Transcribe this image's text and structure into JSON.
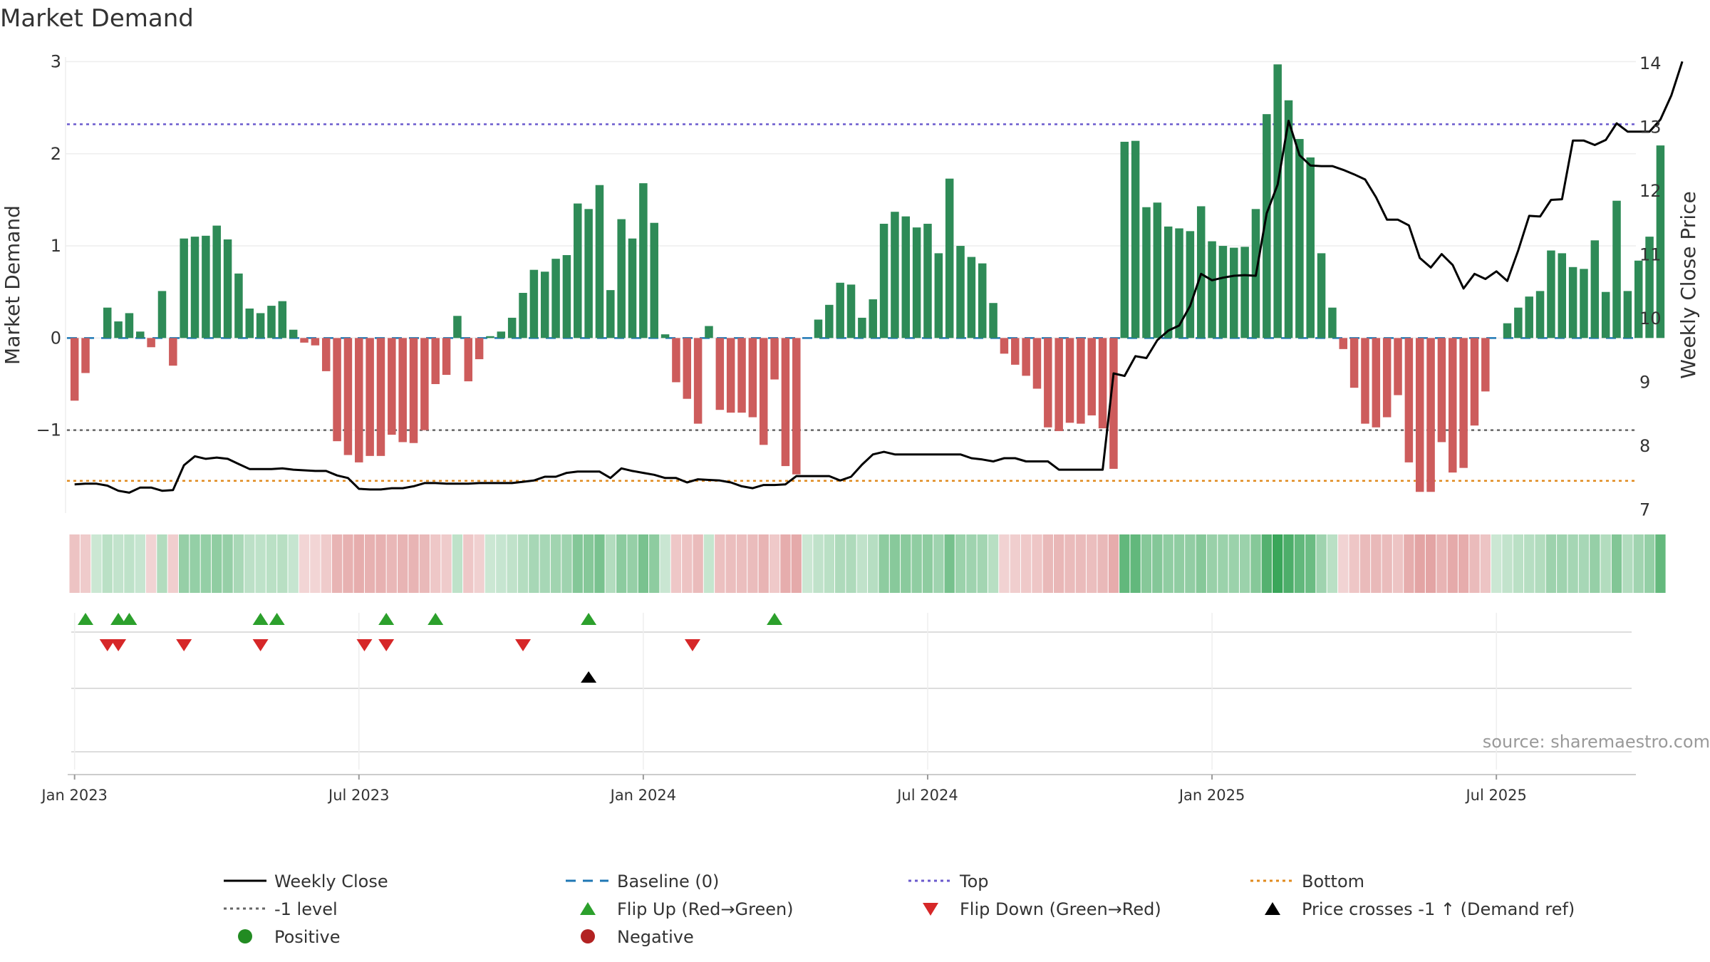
{
  "chart_data": {
    "type": "bar",
    "title": "Market Demand",
    "ylabel_left": "Market Demand",
    "ylabel_right": "Weekly Close Price",
    "left_ylim": [
      -1.9,
      3.05
    ],
    "right_ylim": [
      6.95,
      14.1
    ],
    "left_ticks": [
      3,
      2,
      1,
      0,
      -1
    ],
    "left_tick_labels": [
      "3",
      "2",
      "1",
      "0",
      "−1"
    ],
    "right_ticks": [
      14,
      13,
      12,
      11,
      10,
      9,
      8,
      7
    ],
    "right_tick_labels": [
      "14",
      "13",
      "12",
      "11",
      "10",
      "9",
      "8",
      "7"
    ],
    "reference_lines": {
      "top": 2.32,
      "bottom": -1.55,
      "minus_one": -1,
      "baseline": 0
    },
    "x_tick_labels": [
      "Jan 2023",
      "Jul 2023",
      "Jan 2024",
      "Jul 2024",
      "Jan 2025",
      "Jul 2025"
    ],
    "x_tick_weeks": [
      0.5,
      26.5,
      52.5,
      78.5,
      104.5,
      130.5
    ],
    "demand": [
      -0.68,
      -0.38,
      0.0,
      0.33,
      0.18,
      0.27,
      0.07,
      -0.1,
      0.51,
      -0.3,
      1.08,
      1.1,
      1.11,
      1.22,
      1.07,
      0.7,
      0.32,
      0.27,
      0.35,
      0.4,
      0.09,
      -0.05,
      -0.08,
      -0.36,
      -1.12,
      -1.27,
      -1.35,
      -1.28,
      -1.28,
      -1.05,
      -1.13,
      -1.14,
      -1.0,
      -0.5,
      -0.4,
      0.24,
      -0.47,
      -0.23,
      0.02,
      0.07,
      0.22,
      0.49,
      0.74,
      0.72,
      0.86,
      0.9,
      1.46,
      1.4,
      1.66,
      0.52,
      1.29,
      1.08,
      1.68,
      1.25,
      0.04,
      -0.48,
      -0.66,
      -0.93,
      0.13,
      -0.78,
      -0.81,
      -0.81,
      -0.86,
      -1.16,
      -0.45,
      -1.39,
      -1.48,
      0.0,
      0.2,
      0.36,
      0.6,
      0.58,
      0.22,
      0.42,
      1.24,
      1.37,
      1.32,
      1.2,
      1.24,
      0.92,
      1.73,
      1.0,
      0.88,
      0.81,
      0.38,
      -0.17,
      -0.29,
      -0.41,
      -0.55,
      -0.97,
      -1.01,
      -0.92,
      -0.93,
      -0.84,
      -0.98,
      -1.42,
      2.13,
      2.14,
      1.42,
      1.47,
      1.21,
      1.19,
      1.16,
      1.43,
      1.05,
      1.0,
      0.98,
      0.99,
      1.4,
      2.43,
      2.97,
      2.58,
      2.16,
      1.96,
      0.92,
      0.33,
      -0.12,
      -0.54,
      -0.93,
      -0.97,
      -0.86,
      -0.62,
      -1.35,
      -1.67,
      -1.67,
      -1.13,
      -1.46,
      -1.41,
      -0.95,
      -0.58,
      0.0,
      0.16,
      0.33,
      0.45,
      0.51,
      0.95,
      0.92,
      0.77,
      0.75,
      1.06,
      0.5,
      1.49,
      0.51,
      0.84,
      1.1,
      2.09
    ],
    "close": [
      7.4,
      7.41,
      7.41,
      7.38,
      7.3,
      7.27,
      7.35,
      7.35,
      7.3,
      7.31,
      7.7,
      7.84,
      7.8,
      7.82,
      7.8,
      7.72,
      7.64,
      7.64,
      7.64,
      7.65,
      7.63,
      7.62,
      7.61,
      7.61,
      7.54,
      7.5,
      7.33,
      7.32,
      7.32,
      7.34,
      7.34,
      7.37,
      7.42,
      7.42,
      7.41,
      7.41,
      7.41,
      7.42,
      7.42,
      7.42,
      7.42,
      7.44,
      7.46,
      7.52,
      7.52,
      7.58,
      7.6,
      7.6,
      7.6,
      7.5,
      7.65,
      7.61,
      7.58,
      7.55,
      7.5,
      7.5,
      7.43,
      7.48,
      7.47,
      7.46,
      7.43,
      7.37,
      7.34,
      7.39,
      7.39,
      7.4,
      7.53,
      7.53,
      7.53,
      7.53,
      7.46,
      7.52,
      7.71,
      7.87,
      7.91,
      7.87,
      7.87,
      7.87,
      7.87,
      7.87,
      7.87,
      7.87,
      7.81,
      7.79,
      7.76,
      7.81,
      7.81,
      7.76,
      7.76,
      7.76,
      7.63,
      7.63,
      7.63,
      7.63,
      7.63,
      9.14,
      9.1,
      9.41,
      9.38,
      9.66,
      9.81,
      9.89,
      10.2,
      10.7,
      10.6,
      10.64,
      10.67,
      10.68,
      10.67,
      11.65,
      12.1,
      13.1,
      12.56,
      12.4,
      12.39,
      12.39,
      12.33,
      12.26,
      12.18,
      11.9,
      11.55,
      11.55,
      11.46,
      10.95,
      10.8,
      11.01,
      10.84,
      10.47,
      10.7,
      10.62,
      10.74,
      10.59,
      11.07,
      11.61,
      11.6,
      11.86,
      11.87,
      12.79,
      12.79,
      12.72,
      12.8,
      13.06,
      12.93,
      12.93,
      12.93,
      13.12,
      13.5,
      14.03
    ],
    "flip_up_weeks": [
      1.5,
      4.5,
      5.5,
      17.5,
      19,
      29,
      33.5,
      47.5,
      64.5
    ],
    "flip_down_weeks": [
      3.5,
      4.5,
      10.5,
      17.5,
      27,
      29,
      41.5,
      57
    ],
    "price_cross_weeks": [
      47.5
    ],
    "legend": {
      "weekly_close": "Weekly Close",
      "baseline": "Baseline (0)",
      "top": "Top",
      "bottom": "Bottom",
      "minus_one": "-1 level",
      "flip_up": "Flip Up (Red→Green)",
      "flip_down": "Flip Down (Green→Red)",
      "price_cross": "Price crosses -1 ↑ (Demand ref)",
      "positive": "Positive",
      "negative": "Negative"
    },
    "source": "source: sharemaestro.com"
  },
  "colors": {
    "positive_bar": "#2e8b57",
    "negative_bar": "#cd5c5c",
    "close_line": "#000000",
    "baseline": "#1f77b4",
    "top_line": "#6a5acd",
    "bottom_line": "#e08a1e",
    "minus_one_line": "#666666",
    "flip_up": "#2ca02c",
    "flip_down": "#d62728",
    "price_cross": "#000000",
    "positive_dot": "#228b22",
    "negative_dot": "#b22222"
  }
}
